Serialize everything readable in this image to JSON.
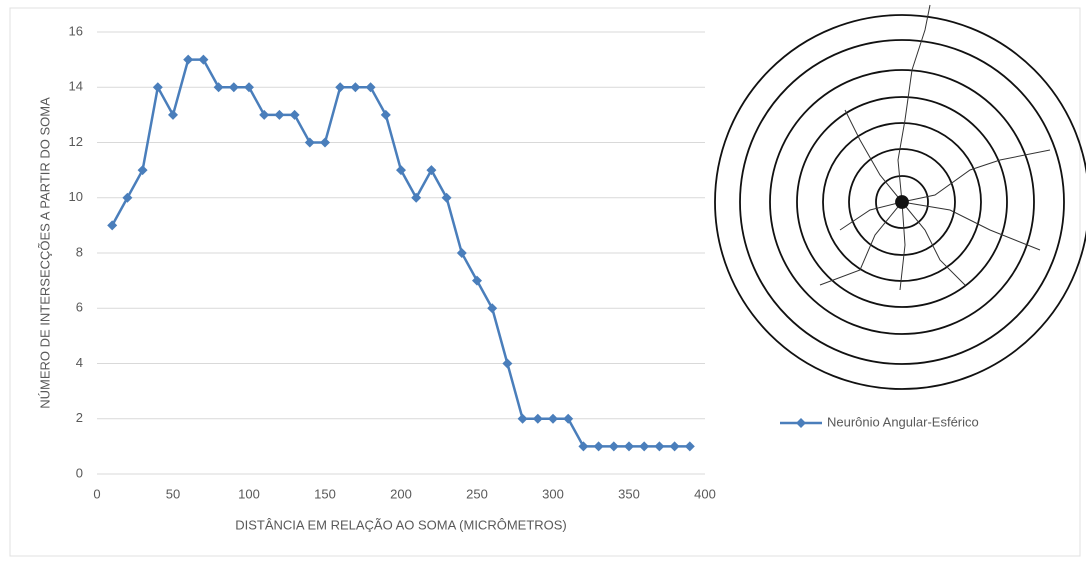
{
  "chart_data": {
    "type": "line",
    "xlabel": "DISTÂNCIA EM RELAÇÃO AO SOMA (MICRÔMETROS)",
    "ylabel": "NÚMERO DE INTERSECÇÕES A PARTIR DO SOMA",
    "x": [
      10,
      20,
      30,
      40,
      50,
      60,
      70,
      80,
      90,
      100,
      110,
      120,
      130,
      140,
      150,
      160,
      170,
      180,
      190,
      200,
      210,
      220,
      230,
      240,
      250,
      260,
      270,
      280,
      290,
      300,
      310,
      320,
      330,
      340,
      350,
      360,
      370,
      380,
      390
    ],
    "series": [
      {
        "name": "Neurônio Angular-Esférico",
        "color": "#4a7ebb",
        "values": [
          9,
          10,
          11,
          14,
          13,
          15,
          15,
          14,
          14,
          14,
          13,
          13,
          13,
          12,
          12,
          14,
          14,
          14,
          13,
          11,
          10,
          11,
          10,
          8,
          7,
          6,
          4,
          2,
          2,
          2,
          2,
          1,
          1,
          1,
          1,
          1,
          1,
          1,
          1
        ]
      }
    ],
    "xlim": [
      0,
      400
    ],
    "xticks": [
      0,
      50,
      100,
      150,
      200,
      250,
      300,
      350,
      400
    ],
    "ylim": [
      0,
      16
    ],
    "yticks": [
      0,
      2,
      4,
      6,
      8,
      10,
      12,
      14,
      16
    ],
    "grid": true,
    "legend": "right"
  }
}
